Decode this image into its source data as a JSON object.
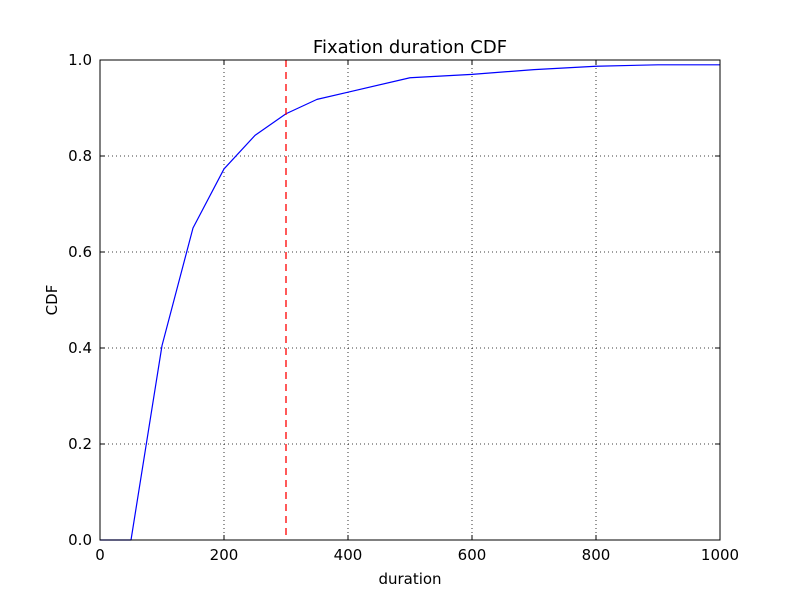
{
  "chart_data": {
    "type": "line",
    "title": "Fixation duration CDF",
    "xlabel": "duration",
    "ylabel": "CDF",
    "xlim": [
      0,
      1000
    ],
    "ylim": [
      0.0,
      1.0
    ],
    "x_ticks": [
      "0",
      "200",
      "400",
      "600",
      "800",
      "1000"
    ],
    "y_ticks": [
      "0.0",
      "0.2",
      "0.4",
      "0.6",
      "0.8",
      "1.0"
    ],
    "grid": true,
    "series": [
      {
        "color": "#0000ff",
        "style": "solid",
        "x": [
          0,
          50,
          100,
          150,
          200,
          250,
          300,
          350,
          400,
          500,
          600,
          700,
          800,
          900,
          1000
        ],
        "y": [
          0.0,
          0.0,
          0.405,
          0.65,
          0.773,
          0.843,
          0.888,
          0.918,
          0.933,
          0.963,
          0.97,
          0.98,
          0.987,
          0.99,
          0.99
        ]
      }
    ],
    "reference_lines": [
      {
        "orientation": "vertical",
        "x": 300,
        "color": "#ff0000",
        "style": "dashed"
      }
    ]
  }
}
